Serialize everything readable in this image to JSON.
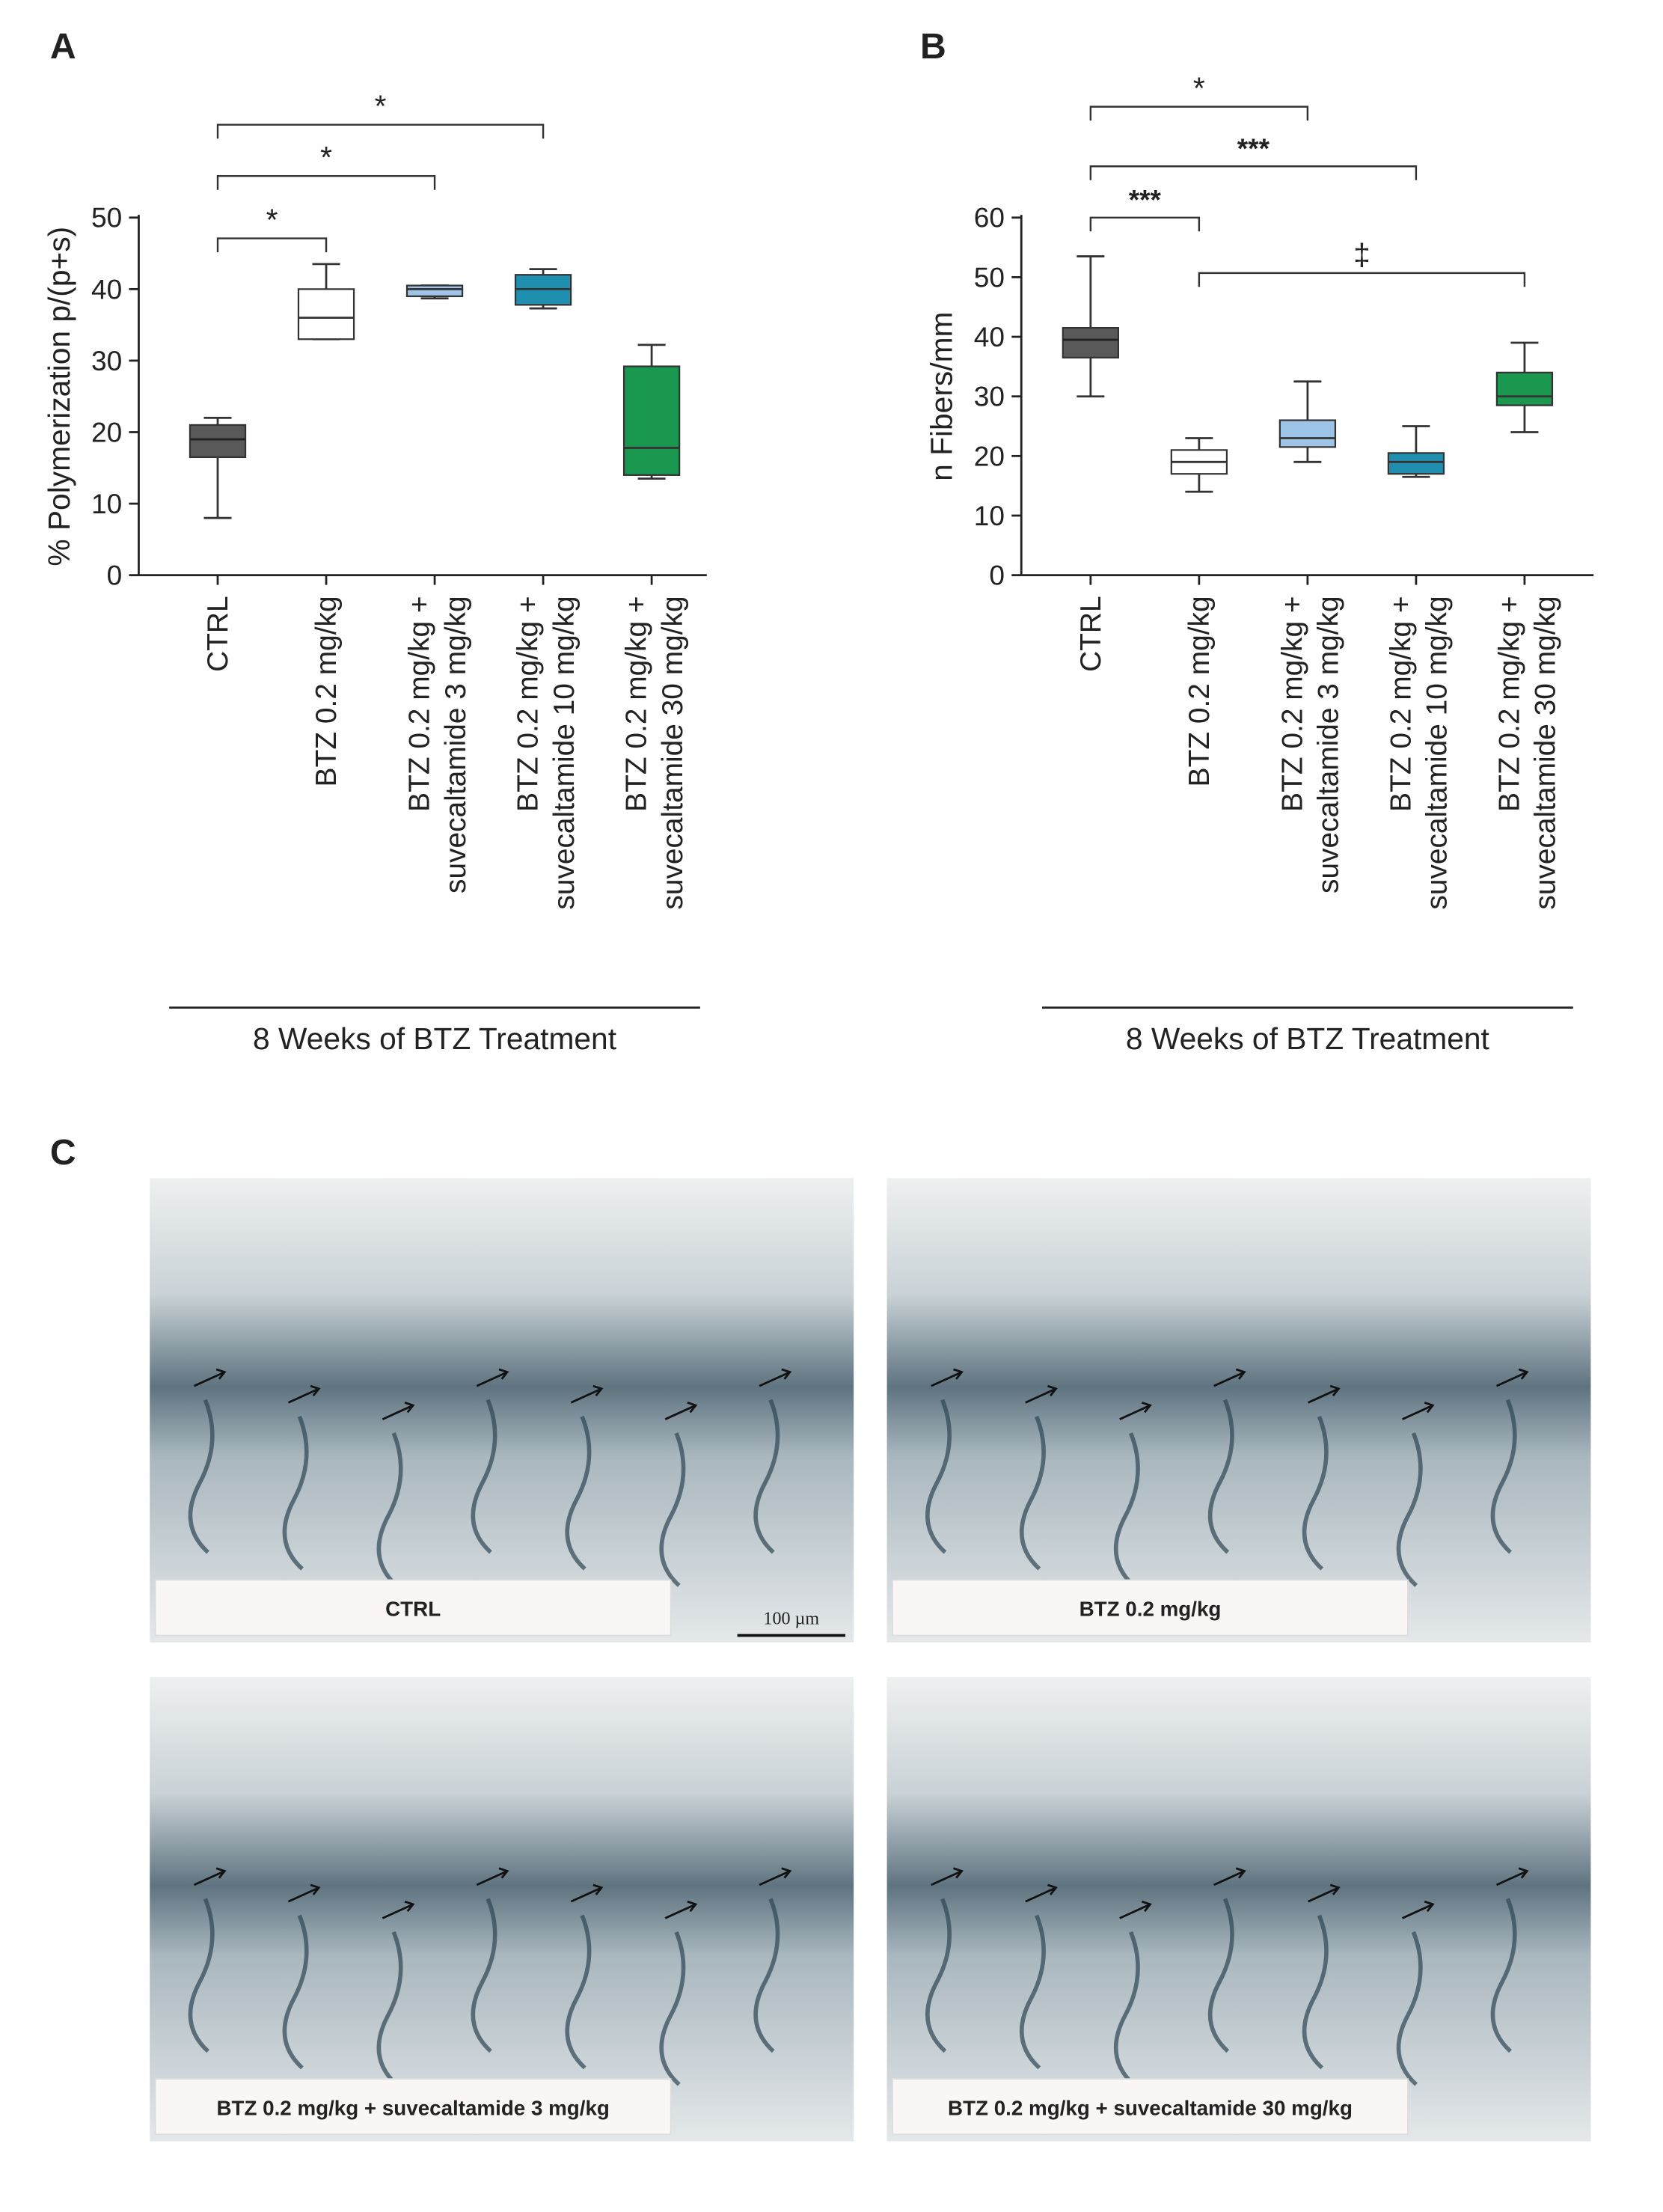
{
  "chart_data": [
    {
      "type": "box",
      "label": "A",
      "ylabel": "% Polymerization p/(p+s)",
      "group_label": "8 Weeks of BTZ Treatment",
      "categories": [
        "CTRL",
        "BTZ 0.2 mg/kg",
        "BTZ 0.2 mg/kg + suvecaltamide 3 mg/kg",
        "BTZ 0.2 mg/kg + suvecaltamide 10 mg/kg",
        "BTZ 0.2 mg/kg + suvecaltamide 30 mg/kg"
      ],
      "colors": [
        "#595959",
        "#ffffff",
        "#9dc3e6",
        "#1f8fb0",
        "#1a9850"
      ],
      "boxes": [
        {
          "min": 8,
          "q1": 16.5,
          "median": 19,
          "q3": 21,
          "max": 22
        },
        {
          "min": 33,
          "q1": 33,
          "median": 36,
          "q3": 40,
          "max": 43.5
        },
        {
          "min": 38.7,
          "q1": 39,
          "median": 40,
          "q3": 40.5,
          "max": 40.5
        },
        {
          "min": 37.3,
          "q1": 37.8,
          "median": 40,
          "q3": 42,
          "max": 42.8
        },
        {
          "min": 13.5,
          "q1": 14,
          "median": 17.8,
          "q3": 29.2,
          "max": 32.2
        }
      ],
      "ylim": [
        0,
        50
      ],
      "yticks": [
        0,
        10,
        20,
        30,
        40,
        50
      ],
      "annotations": [
        {
          "text": "*",
          "between": [
            "CTRL",
            "BTZ 0.2 mg/kg"
          ]
        },
        {
          "text": "*",
          "between": [
            "CTRL",
            "BTZ 0.2 mg/kg + suvecaltamide 3 mg/kg"
          ]
        },
        {
          "text": "*",
          "between": [
            "CTRL",
            "BTZ 0.2 mg/kg + suvecaltamide 10 mg/kg"
          ]
        }
      ]
    },
    {
      "type": "box",
      "label": "B",
      "ylabel": "n Fibers/mm",
      "group_label": "8 Weeks of BTZ Treatment",
      "categories": [
        "CTRL",
        "BTZ 0.2 mg/kg",
        "BTZ 0.2 mg/kg + suvecaltamide 3 mg/kg",
        "BTZ 0.2 mg/kg + suvecaltamide 10 mg/kg",
        "BTZ 0.2 mg/kg + suvecaltamide 30 mg/kg"
      ],
      "colors": [
        "#595959",
        "#ffffff",
        "#9dc3e6",
        "#1f8fb0",
        "#1a9850"
      ],
      "boxes": [
        {
          "min": 30,
          "q1": 36.5,
          "median": 39.5,
          "q3": 41.5,
          "max": 53.5
        },
        {
          "min": 14,
          "q1": 17,
          "median": 19,
          "q3": 21,
          "max": 23
        },
        {
          "min": 19,
          "q1": 21.5,
          "median": 23,
          "q3": 26,
          "max": 32.5
        },
        {
          "min": 16.5,
          "q1": 17,
          "median": 19,
          "q3": 20.5,
          "max": 25
        },
        {
          "min": 24,
          "q1": 28.5,
          "median": 30,
          "q3": 34,
          "max": 39
        }
      ],
      "ylim": [
        0,
        60
      ],
      "yticks": [
        0,
        10,
        20,
        30,
        40,
        50,
        60
      ],
      "annotations": [
        {
          "text": "***",
          "between": [
            "CTRL",
            "BTZ 0.2 mg/kg"
          ]
        },
        {
          "text": "*",
          "between": [
            "CTRL",
            "BTZ 0.2 mg/kg + suvecaltamide 3 mg/kg"
          ]
        },
        {
          "text": "***",
          "between": [
            "CTRL",
            "BTZ 0.2 mg/kg + suvecaltamide 10 mg/kg"
          ]
        },
        {
          "text": "‡",
          "between": [
            "BTZ 0.2 mg/kg",
            "BTZ 0.2 mg/kg + suvecaltamide 30 mg/kg"
          ]
        }
      ]
    }
  ],
  "panel_c": {
    "label": "C",
    "scale_bar": "100 µm",
    "images": [
      "CTRL",
      "BTZ 0.2 mg/kg",
      "BTZ 0.2 mg/kg + suvecaltamide 3 mg/kg",
      "BTZ 0.2 mg/kg + suvecaltamide 30 mg/kg"
    ]
  }
}
